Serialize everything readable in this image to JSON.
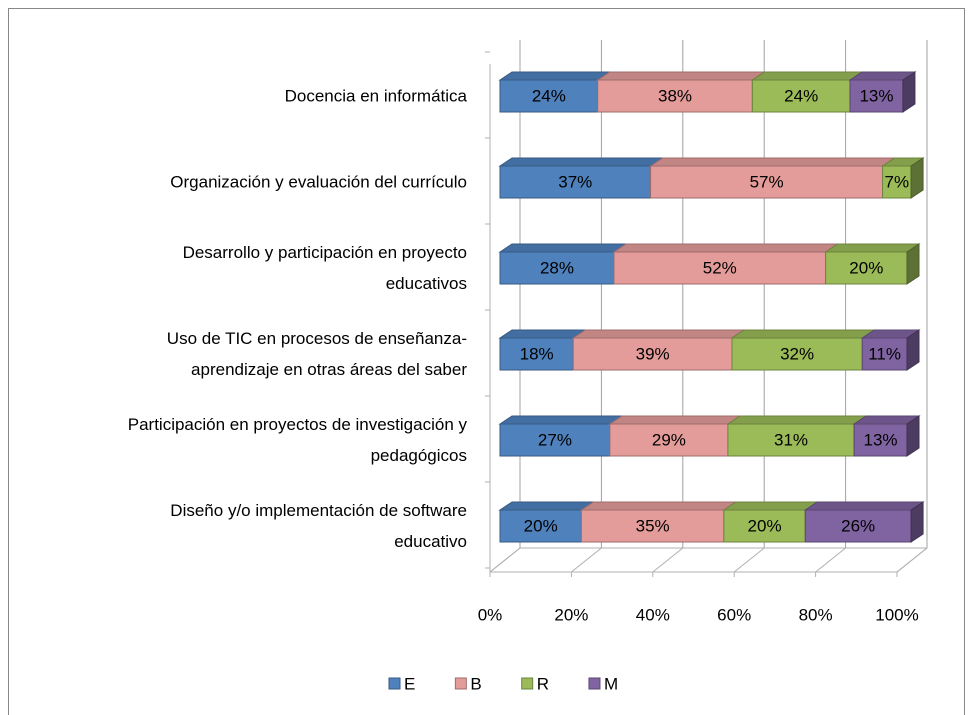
{
  "chart_data": {
    "type": "stacked-bar-3d-horizontal",
    "categories": [
      [
        "Docencia en informática"
      ],
      [
        "Organización y evaluación del currículo"
      ],
      [
        "Desarrollo y participación en proyecto",
        "educativos"
      ],
      [
        "Uso de TIC en procesos de enseñanza-",
        "aprendizaje en otras áreas del saber"
      ],
      [
        "Participación en proyectos de investigación y",
        "pedagógicos"
      ],
      [
        "Diseño y/o implementación de software",
        "educativo"
      ]
    ],
    "series": [
      {
        "name": "E",
        "color": "#4f81bd",
        "values": [
          24,
          37,
          28,
          18,
          27,
          20
        ],
        "value_labels": [
          "24%",
          "37%",
          "28%",
          "18%",
          "27%",
          "20%"
        ]
      },
      {
        "name": "B",
        "color": "#e39c9a",
        "values": [
          38,
          57,
          52,
          39,
          29,
          35
        ],
        "value_labels": [
          "38%",
          "57%",
          "52%",
          "39%",
          "29%",
          "35%"
        ]
      },
      {
        "name": "R",
        "color": "#9bbb59",
        "values": [
          24,
          7,
          20,
          32,
          31,
          20
        ],
        "value_labels": [
          "24%",
          "7%",
          "20%",
          "32%",
          "31%",
          "20%"
        ]
      },
      {
        "name": "M",
        "color": "#8064a2",
        "values": [
          13,
          null,
          null,
          11,
          13,
          26
        ],
        "value_labels": [
          "13%",
          null,
          null,
          "11%",
          "13%",
          "26%"
        ]
      }
    ],
    "xlim": [
      0,
      100
    ],
    "xticks": [
      {
        "value": 0,
        "label": "0%"
      },
      {
        "value": 20,
        "label": "20%"
      },
      {
        "value": 40,
        "label": "40%"
      },
      {
        "value": 60,
        "label": "60%"
      },
      {
        "value": 80,
        "label": "80%"
      },
      {
        "value": 100,
        "label": "100%"
      }
    ],
    "grid": true,
    "legend": "bottom"
  }
}
